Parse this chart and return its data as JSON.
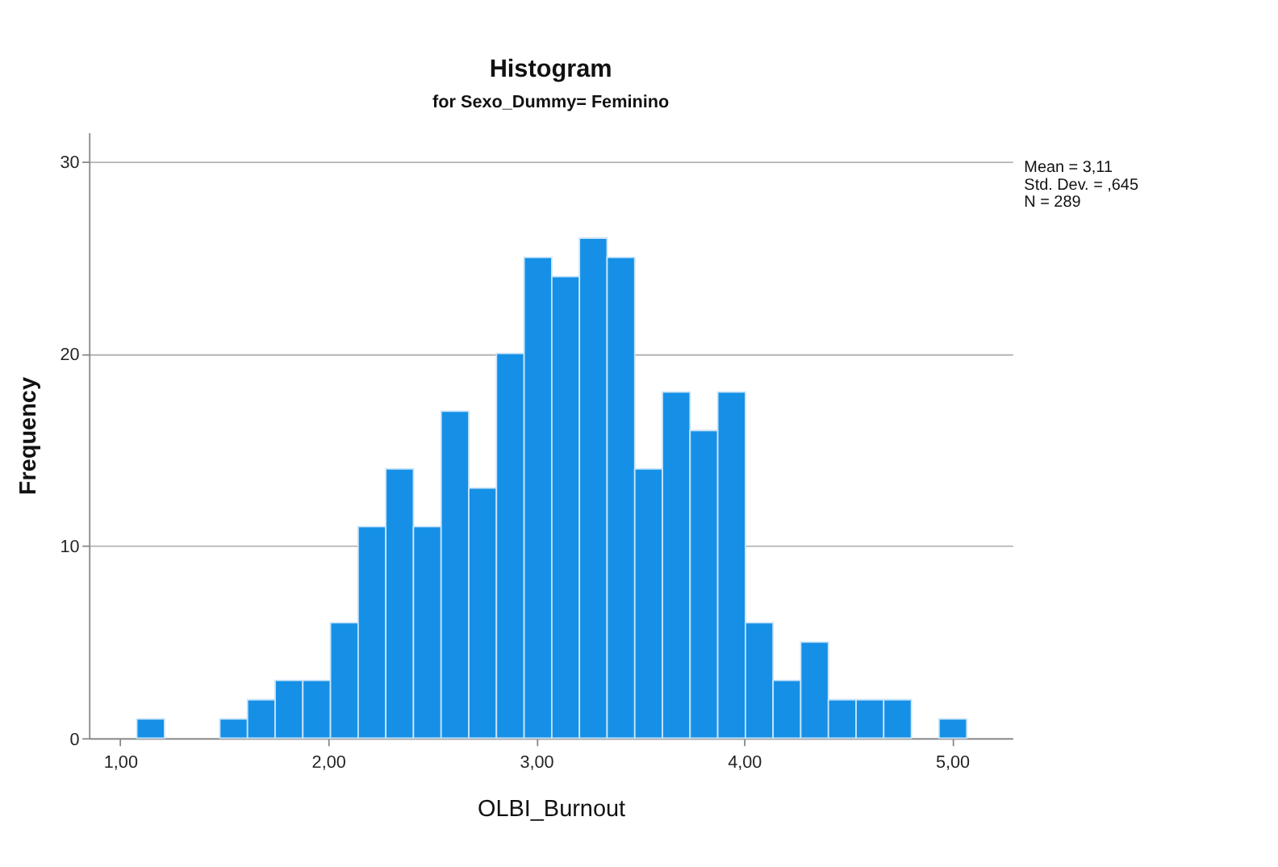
{
  "chart_data": {
    "type": "histogram",
    "title": "Histogram",
    "subtitle": "for Sexo_Dummy= Feminino",
    "xlabel": "OLBI_Burnout",
    "ylabel": "Frequency",
    "bins": [
      1.08,
      1.213,
      1.346,
      1.479,
      1.612,
      1.745,
      1.878,
      2.011,
      2.144,
      2.277,
      2.41,
      2.543,
      2.676,
      2.809,
      2.942,
      3.075,
      3.208,
      3.341,
      3.474,
      3.607,
      3.74,
      3.873,
      4.006,
      4.139,
      4.272,
      4.405,
      4.538,
      4.671,
      4.804,
      4.937,
      5.07
    ],
    "values": [
      1,
      0,
      0,
      1,
      2,
      3,
      3,
      6,
      11,
      14,
      11,
      17,
      13,
      20,
      25,
      24,
      26,
      25,
      14,
      18,
      16,
      18,
      6,
      3,
      5,
      2,
      2,
      2,
      0,
      1
    ],
    "color": "#1590e6",
    "xlim": [
      0.85,
      5.29
    ],
    "xticks": [
      {
        "value": 1,
        "label": "1,00"
      },
      {
        "value": 2,
        "label": "2,00"
      },
      {
        "value": 3,
        "label": "3,00"
      },
      {
        "value": 4,
        "label": "4,00"
      },
      {
        "value": 5,
        "label": "5,00"
      }
    ],
    "ylim": [
      0,
      31.5
    ],
    "yticks": [
      0,
      10,
      20,
      30
    ],
    "grid": "y",
    "annotations": [
      "Mean = 3,11",
      "Std. Dev. = ,645",
      "N = 289"
    ]
  }
}
